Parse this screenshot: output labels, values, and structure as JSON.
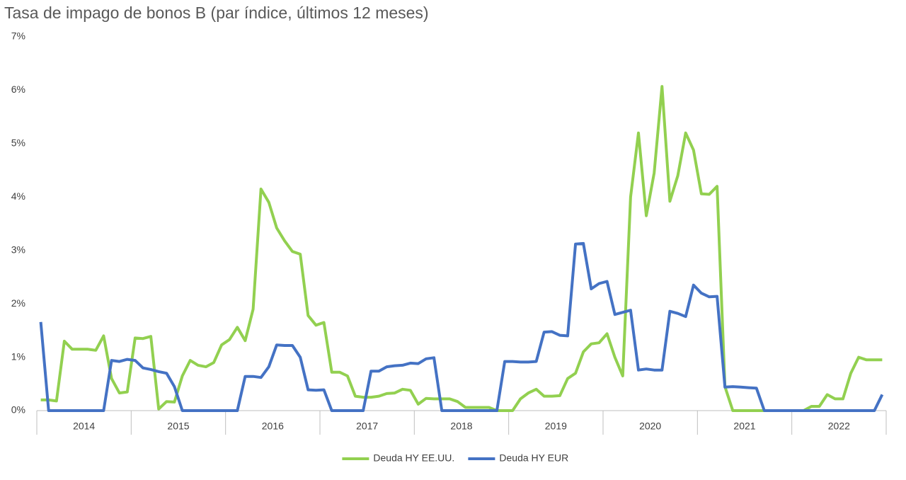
{
  "chart_data": {
    "type": "line",
    "title": "Tasa de impago de bonos B (par índice, últimos 12 meses)",
    "categories": [
      "2014",
      null,
      null,
      null,
      null,
      null,
      null,
      null,
      null,
      null,
      null,
      null,
      "2015",
      null,
      null,
      null,
      null,
      null,
      null,
      null,
      null,
      null,
      null,
      null,
      "2016",
      null,
      null,
      null,
      null,
      null,
      null,
      null,
      null,
      null,
      null,
      null,
      "2017",
      null,
      null,
      null,
      null,
      null,
      null,
      null,
      null,
      null,
      null,
      null,
      "2018",
      null,
      null,
      null,
      null,
      null,
      null,
      null,
      null,
      null,
      null,
      null,
      "2019",
      null,
      null,
      null,
      null,
      null,
      null,
      null,
      null,
      null,
      null,
      null,
      "2020",
      null,
      null,
      null,
      null,
      null,
      null,
      null,
      null,
      null,
      null,
      null,
      "2021",
      null,
      null,
      null,
      null,
      null,
      null,
      null,
      null,
      null,
      null,
      null,
      "2022",
      null,
      null,
      null,
      null,
      null,
      null,
      null,
      null,
      null,
      null,
      null
    ],
    "series": [
      {
        "name": "Deuda HY EE.UU.",
        "color": "#92d050",
        "values": [
          0.2,
          0.2,
          0.18,
          1.3,
          1.15,
          1.15,
          1.15,
          1.13,
          1.4,
          0.6,
          0.33,
          0.35,
          1.36,
          1.35,
          1.39,
          0.03,
          0.17,
          0.16,
          0.65,
          0.94,
          0.85,
          0.82,
          0.9,
          1.23,
          1.33,
          1.56,
          1.31,
          1.9,
          4.15,
          3.9,
          3.42,
          3.18,
          2.98,
          2.93,
          1.78,
          1.6,
          1.65,
          0.72,
          0.72,
          0.65,
          0.27,
          0.25,
          0.25,
          0.27,
          0.32,
          0.33,
          0.4,
          0.38,
          0.12,
          0.23,
          0.22,
          0.22,
          0.22,
          0.17,
          0.06,
          0.06,
          0.06,
          0.06,
          0,
          0,
          0,
          0.22,
          0.33,
          0.4,
          0.27,
          0.27,
          0.28,
          0.6,
          0.7,
          1.1,
          1.25,
          1.27,
          1.44,
          1.0,
          0.65,
          4.0,
          5.2,
          3.65,
          4.45,
          6.07,
          3.92,
          4.4,
          5.2,
          4.88,
          4.06,
          4.05,
          4.2,
          0.45,
          0,
          0,
          0,
          0,
          0,
          0,
          0,
          0,
          0,
          0,
          0.08,
          0.08,
          0.3,
          0.22,
          0.22,
          0.7,
          1.0,
          0.95,
          0.95,
          0.95
        ]
      },
      {
        "name": "Deuda HY EUR",
        "color": "#4472c4",
        "values": [
          1.66,
          0,
          0,
          0,
          0,
          0,
          0,
          0,
          0,
          0.94,
          0.92,
          0.96,
          0.94,
          0.8,
          0.77,
          0.73,
          0.7,
          0.45,
          0,
          0,
          0,
          0,
          0,
          0,
          0,
          0,
          0.64,
          0.64,
          0.62,
          0.82,
          1.23,
          1.22,
          1.22,
          1.0,
          0.39,
          0.38,
          0.39,
          0,
          0,
          0,
          0,
          0,
          0.74,
          0.74,
          0.82,
          0.84,
          0.85,
          0.89,
          0.88,
          0.97,
          0.99,
          0,
          0,
          0,
          0,
          0,
          0,
          0,
          0,
          0.92,
          0.92,
          0.91,
          0.91,
          0.92,
          1.47,
          1.48,
          1.41,
          1.4,
          3.12,
          3.13,
          2.28,
          2.38,
          2.42,
          1.8,
          1.84,
          1.88,
          0.76,
          0.78,
          0.76,
          0.76,
          1.86,
          1.82,
          1.76,
          2.35,
          2.2,
          2.13,
          2.14,
          0.44,
          0.45,
          0.44,
          0.43,
          0.42,
          0,
          0,
          0,
          0,
          0,
          0,
          0,
          0,
          0,
          0,
          0,
          0,
          0,
          0,
          0,
          0.3
        ]
      }
    ],
    "ylim": [
      0,
      7
    ],
    "yticks": [
      {
        "value": 0,
        "label": "0%"
      },
      {
        "value": 1,
        "label": "1%"
      },
      {
        "value": 2,
        "label": "2%"
      },
      {
        "value": 3,
        "label": "3%"
      },
      {
        "value": 4,
        "label": "4%"
      },
      {
        "value": 5,
        "label": "5%"
      },
      {
        "value": 6,
        "label": "6%"
      },
      {
        "value": 7,
        "label": "7%"
      }
    ],
    "grid": false,
    "legend": "bottom"
  }
}
